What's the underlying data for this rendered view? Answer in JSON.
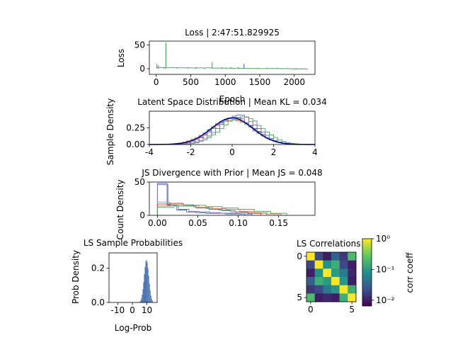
{
  "chart_data": [
    {
      "type": "line",
      "title": "Loss | 2:47:51.829925",
      "xlabel": "Epoch",
      "ylabel": "Loss",
      "xlim": [
        -100,
        2300
      ],
      "ylim": [
        -12,
        58
      ],
      "xticks": [
        0,
        500,
        1000,
        1500,
        2000
      ],
      "yticks": [
        0,
        50
      ],
      "color": "#55a868",
      "spikes": [
        {
          "x": 8,
          "y": 10
        },
        {
          "x": 30,
          "y": 7
        },
        {
          "x": 110,
          "y": 3
        },
        {
          "x": 140,
          "y": 55
        },
        {
          "x": 300,
          "y": 3
        },
        {
          "x": 460,
          "y": 2
        },
        {
          "x": 580,
          "y": 3
        },
        {
          "x": 700,
          "y": 2
        },
        {
          "x": 810,
          "y": 14
        },
        {
          "x": 950,
          "y": 3
        },
        {
          "x": 1010,
          "y": 2
        },
        {
          "x": 1080,
          "y": 3
        },
        {
          "x": 1190,
          "y": 3
        },
        {
          "x": 1270,
          "y": 10,
          "color": "#4c72b0"
        },
        {
          "x": 1460,
          "y": 2
        },
        {
          "x": 1600,
          "y": 2
        },
        {
          "x": 1750,
          "y": 2
        },
        {
          "x": 1900,
          "y": 2
        },
        {
          "x": 2020,
          "y": 1.5
        }
      ]
    },
    {
      "type": "area",
      "title": "Latent Space Distribution | Mean KL = 0.034",
      "xlabel": "",
      "ylabel": "Sample Density",
      "xlim": [
        -4,
        4
      ],
      "ylim": [
        0,
        0.5
      ],
      "xticks": [
        -4,
        -2,
        0,
        2,
        4
      ],
      "yticks": [
        0.0,
        0.25
      ],
      "prior_color": "#000080",
      "series": [
        {
          "mean": -0.05,
          "sd": 1.05,
          "color": "#dd8452"
        },
        {
          "mean": 0.1,
          "sd": 0.98,
          "color": "#c44e52"
        },
        {
          "mean": 0.5,
          "sd": 0.95,
          "color": "#55a868"
        },
        {
          "mean": 0.3,
          "sd": 0.9,
          "color": "#8172b3"
        },
        {
          "mean": 0.05,
          "sd": 1.0,
          "color": "#4c72b0"
        },
        {
          "mean": 0.0,
          "sd": 1.02,
          "color": "#64b5cd"
        }
      ]
    },
    {
      "type": "bar",
      "title": "JS Divergence with Prior | Mean JS = 0.048",
      "xlabel": "",
      "ylabel": "Count Density",
      "xlim": [
        -0.01,
        0.195
      ],
      "ylim": [
        0,
        50
      ],
      "xticks": [
        0.0,
        0.05,
        0.1,
        0.15
      ],
      "yticks": [
        0,
        50
      ],
      "series": [
        {
          "color": "#4c72b0",
          "edges": [
            0.0,
            0.012,
            0.024,
            0.036,
            0.048,
            0.06,
            0.072,
            0.084,
            0.096,
            0.108
          ],
          "values": [
            48,
            15,
            8,
            5,
            4,
            3,
            3,
            2,
            2
          ]
        },
        {
          "color": "#8172b3",
          "edges": [
            0.0,
            0.013,
            0.026,
            0.039,
            0.052,
            0.065,
            0.078,
            0.091,
            0.104,
            0.117
          ],
          "values": [
            46,
            16,
            9,
            6,
            5,
            4,
            3,
            3,
            2
          ]
        },
        {
          "color": "#64b5cd",
          "edges": [
            0.0,
            0.015,
            0.03,
            0.045,
            0.06,
            0.075,
            0.09,
            0.105,
            0.12,
            0.135
          ],
          "values": [
            20,
            18,
            16,
            12,
            10,
            8,
            5,
            4,
            3
          ]
        },
        {
          "color": "#dd8452",
          "edges": [
            0.0,
            0.017,
            0.034,
            0.051,
            0.068,
            0.085,
            0.102,
            0.119,
            0.136,
            0.153
          ],
          "values": [
            14,
            16,
            15,
            12,
            10,
            9,
            6,
            4,
            2
          ]
        },
        {
          "color": "#c44e52",
          "edges": [
            0.0,
            0.016,
            0.032,
            0.048,
            0.064,
            0.08,
            0.096,
            0.112,
            0.128
          ],
          "values": [
            17,
            18,
            14,
            11,
            9,
            7,
            5,
            3
          ]
        },
        {
          "color": "#55a868",
          "edges": [
            0.0,
            0.02,
            0.04,
            0.06,
            0.08,
            0.1,
            0.12,
            0.14,
            0.16
          ],
          "values": [
            12,
            14,
            15,
            13,
            11,
            9,
            6,
            3
          ]
        }
      ]
    },
    {
      "type": "bar",
      "title": "LS Sample Probabilities",
      "xlabel": "Log-Prob",
      "ylabel": "Prob Density",
      "xlim": [
        -16,
        17
      ],
      "ylim": [
        0,
        0.29
      ],
      "xticks": [
        -10,
        0,
        10
      ],
      "yticks": [
        0.0,
        0.2
      ],
      "color": "#4c72b0",
      "mean": 9.7,
      "sd": 1.6
    },
    {
      "type": "heatmap",
      "title": "LS Correlations",
      "xticks": [
        0,
        5
      ],
      "yticks": [
        0,
        5
      ],
      "colorbar_label": "corr coeff",
      "colorbar_ticks": [
        "10⁰",
        "10⁻¹",
        "10⁻²"
      ],
      "matrix": [
        [
          1.0,
          0.02,
          0.01,
          0.03,
          0.015,
          0.2
        ],
        [
          0.02,
          1.0,
          0.08,
          0.15,
          0.02,
          0.01
        ],
        [
          0.01,
          0.08,
          1.0,
          0.1,
          0.05,
          0.012
        ],
        [
          0.03,
          0.15,
          0.1,
          1.0,
          0.09,
          0.01
        ],
        [
          0.015,
          0.02,
          0.05,
          0.09,
          1.0,
          0.15
        ],
        [
          0.2,
          0.01,
          0.012,
          0.01,
          0.15,
          1.0
        ]
      ]
    }
  ]
}
